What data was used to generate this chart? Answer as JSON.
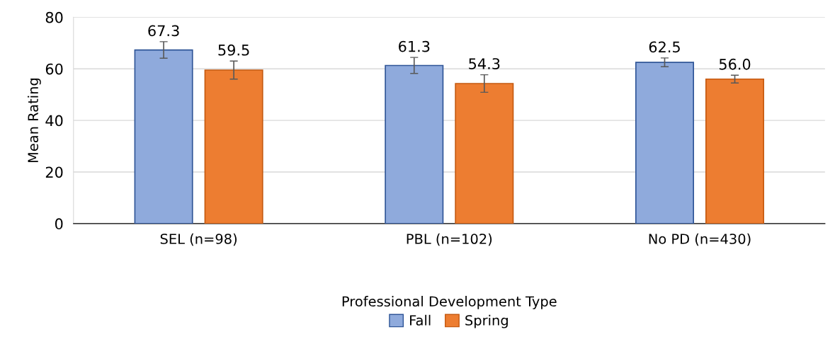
{
  "chart_data": {
    "type": "bar",
    "xlabel": "Professional Development Type",
    "ylabel": "Mean Rating",
    "categories": [
      "SEL (n=98)",
      "PBL (n=102)",
      "No PD (n=430)"
    ],
    "series": [
      {
        "name": "Fall",
        "color": "#8faadc",
        "values": [
          67.3,
          61.3,
          62.5
        ],
        "errors": [
          3.2,
          3.1,
          1.7
        ],
        "value_labels": [
          "67.3",
          "61.3",
          "62.5"
        ]
      },
      {
        "name": "Spring",
        "color": "#ed7d31",
        "values": [
          59.5,
          54.3,
          56.0
        ],
        "errors": [
          3.5,
          3.4,
          1.5
        ],
        "value_labels": [
          "59.5",
          "54.3",
          "56.0"
        ]
      }
    ],
    "ylim": [
      0,
      80
    ],
    "yticks": [
      0,
      20,
      40,
      60,
      80
    ],
    "grid": "y",
    "legend": "bottom"
  }
}
